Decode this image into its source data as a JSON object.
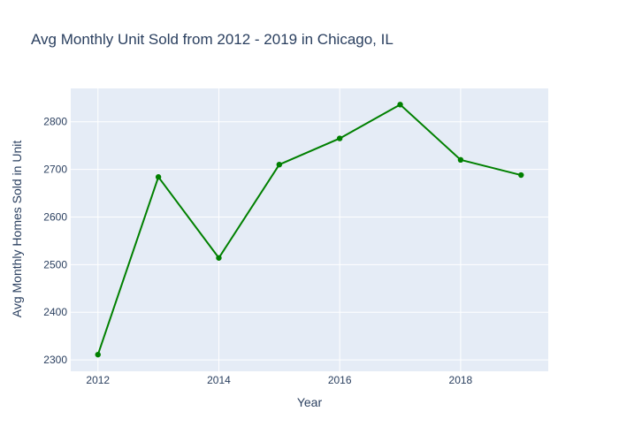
{
  "chart_data": {
    "type": "line",
    "title": "Avg Monthly Unit Sold from 2012 - 2019 in Chicago, IL",
    "xlabel": "Year",
    "ylabel": "Avg Monthly Homes Sold in Unit",
    "x": [
      2012,
      2013,
      2014,
      2015,
      2016,
      2017,
      2018,
      2019
    ],
    "series": [
      {
        "values": [
          2311,
          2684,
          2514,
          2710,
          2765,
          2836,
          2720,
          2688
        ]
      }
    ],
    "xlim": [
      2011.55,
      2019.45
    ],
    "ylim": [
      2276,
      2870
    ],
    "xticks": [
      2012,
      2014,
      2016,
      2018
    ],
    "yticks": [
      2300,
      2400,
      2500,
      2600,
      2700,
      2800
    ],
    "grid": true,
    "colors": {
      "line": "#008000",
      "plot_bg": "#e5ecf6",
      "grid": "#ffffff",
      "text": "#2a3f5f"
    }
  }
}
